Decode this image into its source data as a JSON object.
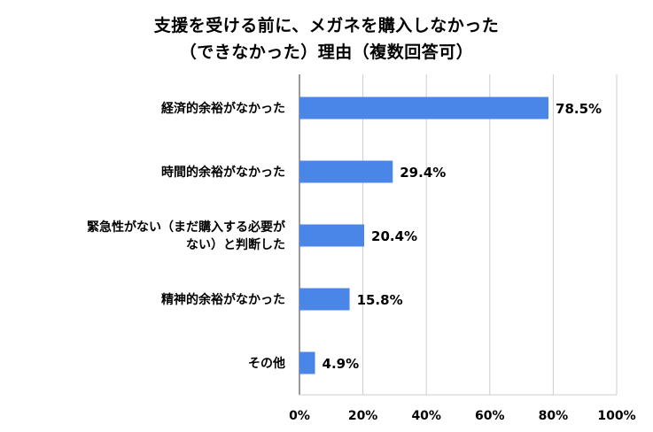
{
  "chart_data": {
    "type": "bar",
    "orientation": "horizontal",
    "title_lines": [
      "支援を受ける前に、メガネを購入しなかった",
      "（できなかった）理由（複数回答可）"
    ],
    "categories": [
      [
        "経済的余裕がなかった"
      ],
      [
        "時間的余裕がなかった"
      ],
      [
        "緊急性がない（まだ購入する必要が",
        "ない）と判断した"
      ],
      [
        "精神的余裕がなかった"
      ],
      [
        "その他"
      ]
    ],
    "values": [
      78.5,
      29.4,
      20.4,
      15.8,
      4.9
    ],
    "value_labels": [
      "78.5%",
      "29.4%",
      "20.4%",
      "15.8%",
      "4.9%"
    ],
    "xlim": [
      0,
      100
    ],
    "xticks": [
      0,
      20,
      40,
      60,
      80,
      100
    ],
    "xtick_labels": [
      "0%",
      "20%",
      "40%",
      "60%",
      "80%",
      "100%"
    ],
    "grid": "vertical",
    "legend": "none",
    "bar_color": "#4a86e8",
    "grid_color": "#cccccc"
  }
}
